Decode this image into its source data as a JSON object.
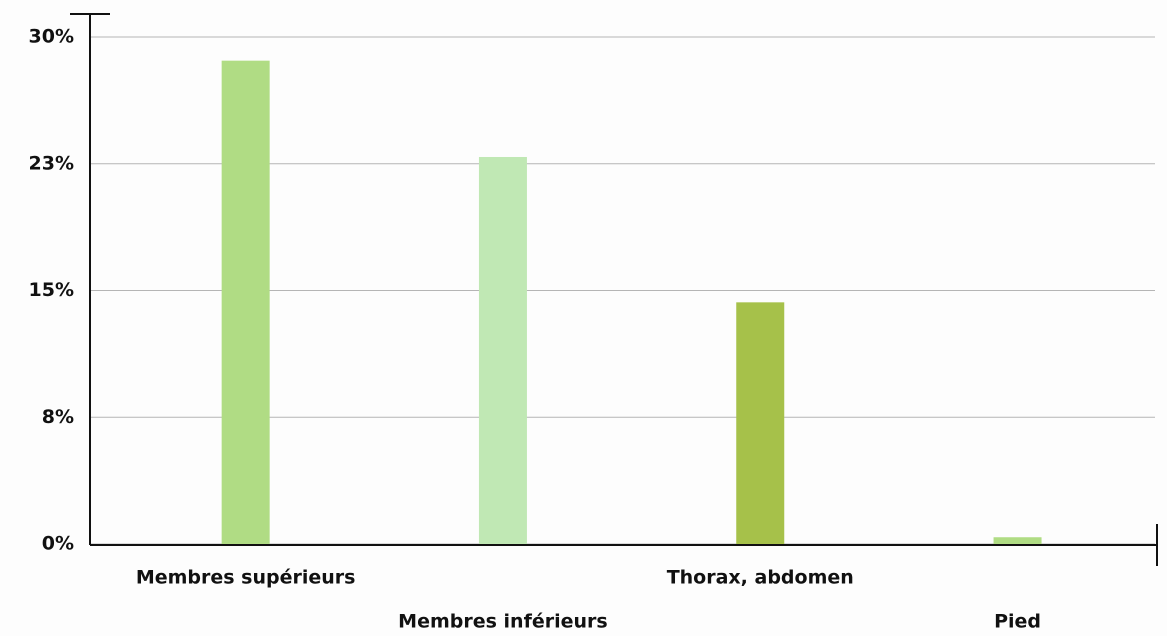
{
  "chart_data": {
    "type": "bar",
    "categories": [
      "Membres supérieurs",
      "Membres inférieurs",
      "Thorax, abdomen",
      "Pied"
    ],
    "values": [
      28.6,
      22.9,
      14.3,
      0.4
    ],
    "colors": [
      "#b0dc84",
      "#c0e8b4",
      "#a6c14a",
      "#b0dc84"
    ],
    "ylim": [
      0,
      30
    ],
    "yticks": [
      {
        "value": 0,
        "label": "0%"
      },
      {
        "value": 7.5,
        "label": "8%"
      },
      {
        "value": 15,
        "label": "15%"
      },
      {
        "value": 22.5,
        "label": "23%"
      },
      {
        "value": 30,
        "label": "30%"
      }
    ],
    "grid": true
  }
}
